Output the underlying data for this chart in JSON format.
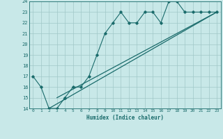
{
  "xlabel": "Humidex (Indice chaleur)",
  "bg_color": "#c8e8e8",
  "grid_color": "#a0c8c8",
  "line_color": "#1a6b6b",
  "xlim": [
    -0.5,
    23.5
  ],
  "ylim": [
    14,
    24
  ],
  "xticks": [
    0,
    1,
    2,
    3,
    4,
    5,
    6,
    7,
    8,
    9,
    10,
    11,
    12,
    13,
    14,
    15,
    16,
    17,
    18,
    19,
    20,
    21,
    22,
    23
  ],
  "yticks": [
    14,
    15,
    16,
    17,
    18,
    19,
    20,
    21,
    22,
    23,
    24
  ],
  "line1_x": [
    0,
    1,
    2,
    3,
    4,
    4,
    5,
    6,
    7,
    8,
    9,
    10,
    11,
    12,
    13,
    14,
    15,
    16,
    17,
    18,
    19,
    20,
    21,
    22,
    23
  ],
  "line1_y": [
    17,
    16,
    14,
    14,
    15,
    15,
    16,
    16,
    17,
    19,
    21,
    22,
    23,
    22,
    22,
    23,
    23,
    22,
    24,
    24,
    23,
    23,
    23,
    23,
    23
  ],
  "line2_x": [
    2,
    23
  ],
  "line2_y": [
    14,
    23
  ],
  "line3_x": [
    3,
    23
  ],
  "line3_y": [
    15,
    23
  ]
}
